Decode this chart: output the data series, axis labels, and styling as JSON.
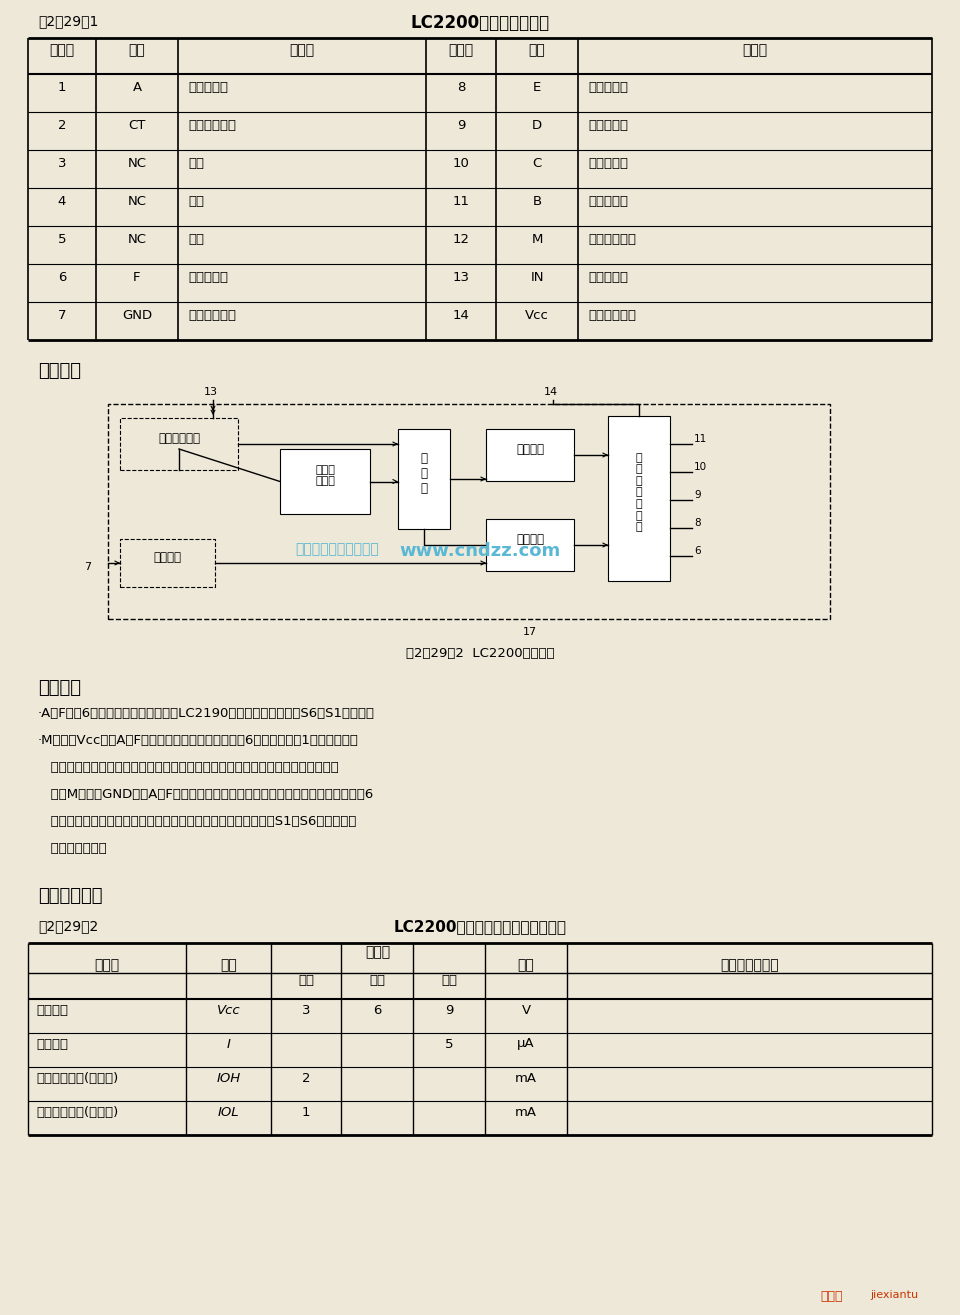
{
  "bg_color": "#ede8d8",
  "title1": "表2－29－1",
  "title1_center": "LC2200引脚符号及功能",
  "table1_headers": [
    "引脚号",
    "符号",
    "功　能",
    "引脚号",
    "符号",
    "功　能"
  ],
  "table1_rows": [
    [
      "1",
      "A",
      "驱动输出端",
      "8",
      "E",
      "驱动输出端"
    ],
    [
      "2",
      "CT",
      "外接定时元件",
      "9",
      "D",
      "驱动输出端"
    ],
    [
      "3",
      "NC",
      "空脚",
      "10",
      "C",
      "驱动输出端"
    ],
    [
      "4",
      "NC",
      "空脚",
      "11",
      "B",
      "驱动输出端"
    ],
    [
      "5",
      "NC",
      "空脚",
      "12",
      "M",
      "控制输出方式"
    ],
    [
      "6",
      "F",
      "驱动输出端",
      "13",
      "IN",
      "信号输入端"
    ],
    [
      "7",
      "GND",
      "外接电源负端",
      "14",
      "Vcc",
      "外接电源正端"
    ]
  ],
  "section1": "逻辑框图",
  "diagram_caption": "图2－29－2  LC2200逻辑框图",
  "section2": "功能说明",
  "para1": "·A～F端为6路独立的驱动输出端，与LC2190发射电路的按键开关S6～S1相对应。",
  "para2": "·M端连接Vcc时，A～F端输出呈互锁关系。任何时候6路输出中只有1路为低电平，",
  "para2b": "   并以发射电路最后按下的按键所对应的输出为优先，其余输出端均自动清零为低电",
  "para2c": "   平。M端连接GND时，A～F端输出呈自锁关系，即各路输出独立，互不影响。此时6",
  "para2d": "   路中每路输出均可以是高电平或低电平，而且对于每一路每按动S1～S6一次，输出",
  "para2e": "   状态改变一次。",
  "section3": "电气技术指标",
  "title2": "表2－29－2",
  "title2_center": "LC2200电气技术指标符号及参数值",
  "table2_col1": "名　称",
  "table2_col2": "符号",
  "table2_col3": "参数值",
  "table2_col3a": "最小",
  "table2_col3b": "典型",
  "table2_col3c": "最大",
  "table2_col4": "单位",
  "table2_col5": "测　试　条　件",
  "table2_rows": [
    [
      "电源电压",
      "VCC",
      "3",
      "6",
      "9",
      "V",
      ""
    ],
    [
      "静态电流",
      "I",
      "",
      "",
      "5",
      "μA",
      ""
    ],
    [
      "输出驱动电流(高电平)",
      "IOH",
      "2",
      "",
      "",
      "mA",
      ""
    ],
    [
      "输出驱动电流(低电平)",
      "IOL",
      "1",
      "",
      "",
      "mA",
      ""
    ]
  ],
  "table2_sym_italic": [
    "VCC",
    "I",
    "IOH",
    "IOL"
  ],
  "table2_sym_display": [
    "Vcc",
    "I",
    "IOH",
    "IOL"
  ],
  "watermark_text": "www.cndzz.com",
  "watermark_left": "杭州络虎科技有限公司",
  "watermark_color": "#5bb8d4",
  "footer_right_text": "接线图  jiexiantu",
  "footer_right_color": "#cc4400",
  "footer_logo_color": "#cc3300"
}
